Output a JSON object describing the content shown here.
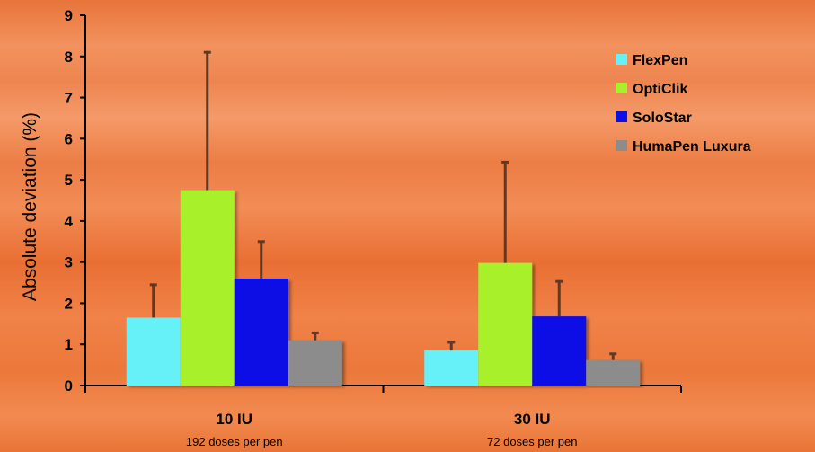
{
  "chart_data": {
    "type": "bar",
    "title": "",
    "ylabel": "Absolute deviation (%)",
    "xlabel": "",
    "ylim": [
      0,
      9
    ],
    "yticks": [
      0,
      1,
      2,
      3,
      4,
      5,
      6,
      7,
      8,
      9
    ],
    "grid": false,
    "legend_position": "top-right",
    "categories": [
      {
        "label": "10 IU",
        "sublabel": "192 doses per pen"
      },
      {
        "label": "30 IU",
        "sublabel": "72 doses per pen"
      }
    ],
    "series": [
      {
        "name": "FlexPen",
        "color": "#66f0f8",
        "values": [
          1.65,
          0.85
        ],
        "errors": [
          0.8,
          0.2
        ]
      },
      {
        "name": "OptiClik",
        "color": "#a8f02a",
        "values": [
          4.75,
          2.98
        ],
        "errors": [
          3.35,
          2.45
        ]
      },
      {
        "name": "SoloStar",
        "color": "#0c10e6",
        "values": [
          2.6,
          1.68
        ],
        "errors": [
          0.9,
          0.85
        ]
      },
      {
        "name": "HumaPen Luxura",
        "color": "#8c8c8c",
        "values": [
          1.1,
          0.62
        ],
        "errors": [
          0.18,
          0.15
        ]
      }
    ]
  }
}
